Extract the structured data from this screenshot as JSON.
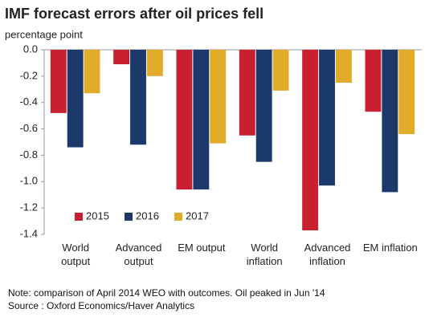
{
  "chart_data": {
    "type": "bar",
    "title": "IMF forecast errors after oil prices fell",
    "subtitle": "percentage point",
    "categories": [
      "World output",
      "Advanced output",
      "EM output",
      "World inflation",
      "Advanced inflation",
      "EM inflation"
    ],
    "series": [
      {
        "name": "2015",
        "color": "#c8202f",
        "values": [
          -0.48,
          -0.11,
          -1.06,
          -0.65,
          -1.37,
          -0.47
        ]
      },
      {
        "name": "2016",
        "color": "#1b3a6b",
        "values": [
          -0.74,
          -0.72,
          -1.06,
          -0.85,
          -1.03,
          -1.08
        ]
      },
      {
        "name": "2017",
        "color": "#e2ac2b",
        "values": [
          -0.33,
          -0.2,
          -0.71,
          -0.31,
          -0.25,
          -0.64
        ]
      }
    ],
    "ylim": [
      -1.4,
      0
    ],
    "yticks": [
      {
        "value": 0,
        "label": "0.0"
      },
      -0.2,
      -0.4,
      -0.6,
      -0.8,
      {
        "value": -1,
        "label": "-1.0"
      },
      -1.2,
      -1.4
    ],
    "legend": "lower-left",
    "note": "Note: comparison of April 2014 WEO with outcomes. Oil peaked in Jun '14",
    "source": "Source : Oxford Economics/Haver Analytics"
  }
}
